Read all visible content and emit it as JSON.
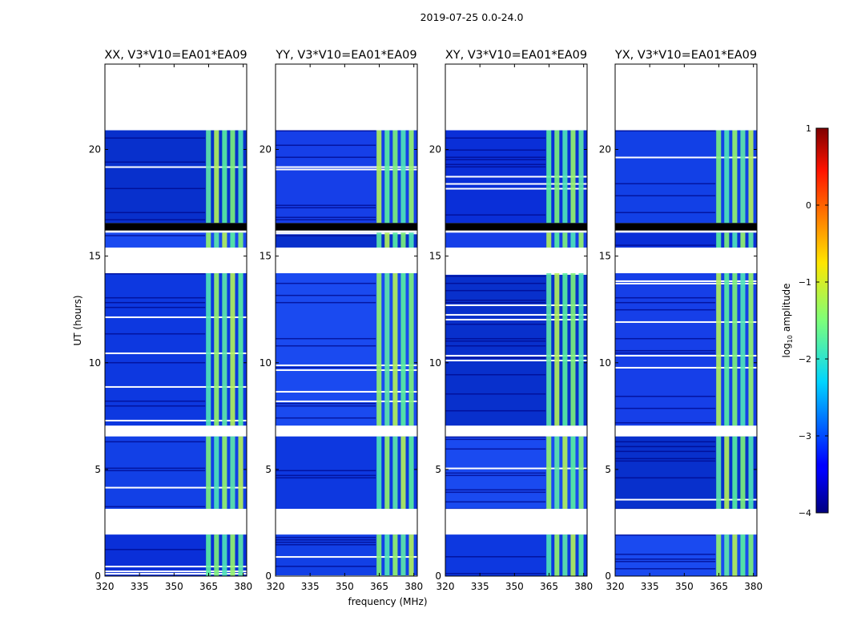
{
  "chart_data": {
    "type": "heatmap",
    "title": "2019-07-25 0.0-24.0",
    "xlabel": "frequency (MHz)",
    "ylabel": "UT (hours)",
    "xlim": [
      320,
      381.5
    ],
    "ylim": [
      0,
      24
    ],
    "xticks": [
      320,
      335,
      350,
      365,
      380
    ],
    "yticks": [
      0,
      5,
      10,
      15,
      20
    ],
    "panels": [
      {
        "name": "XX",
        "title": "XX, V3*V10=EA01*EA09",
        "bright_blocks": [
          "0-1.4",
          "4.6-6.4",
          "17.6-18.2"
        ]
      },
      {
        "name": "YY",
        "title": "YY, V3*V10=EA01*EA09",
        "bright_blocks": [
          "0-1.4",
          "3.2-4.4",
          "17.6-18.2"
        ]
      },
      {
        "name": "XY",
        "title": "XY, V3*V10=EA01*EA09",
        "bright_blocks": [
          "0-1.4"
        ]
      },
      {
        "name": "YX",
        "title": "YX, V3*V10=EA01*EA09",
        "bright_blocks": [
          "0-1.4"
        ]
      }
    ],
    "data_time_ranges_hours": [
      [
        0.0,
        1.95
      ],
      [
        3.15,
        6.55
      ],
      [
        7.05,
        14.2
      ],
      [
        15.4,
        16.1
      ],
      [
        16.55,
        20.9
      ]
    ],
    "flagged_gaps_hours": [
      [
        1.95,
        3.15
      ],
      [
        6.55,
        7.05
      ],
      [
        14.2,
        15.4
      ],
      [
        20.9,
        24.0
      ]
    ],
    "rfi_band_mhz": [
      363.5,
      381.0
    ],
    "colorbar": {
      "label": "log",
      "label_sub": "10",
      "label_rest": " amplitude",
      "range": [
        -4,
        1
      ],
      "ticks": [
        "1",
        "0",
        "−1",
        "−2",
        "−3",
        "−4"
      ]
    }
  }
}
